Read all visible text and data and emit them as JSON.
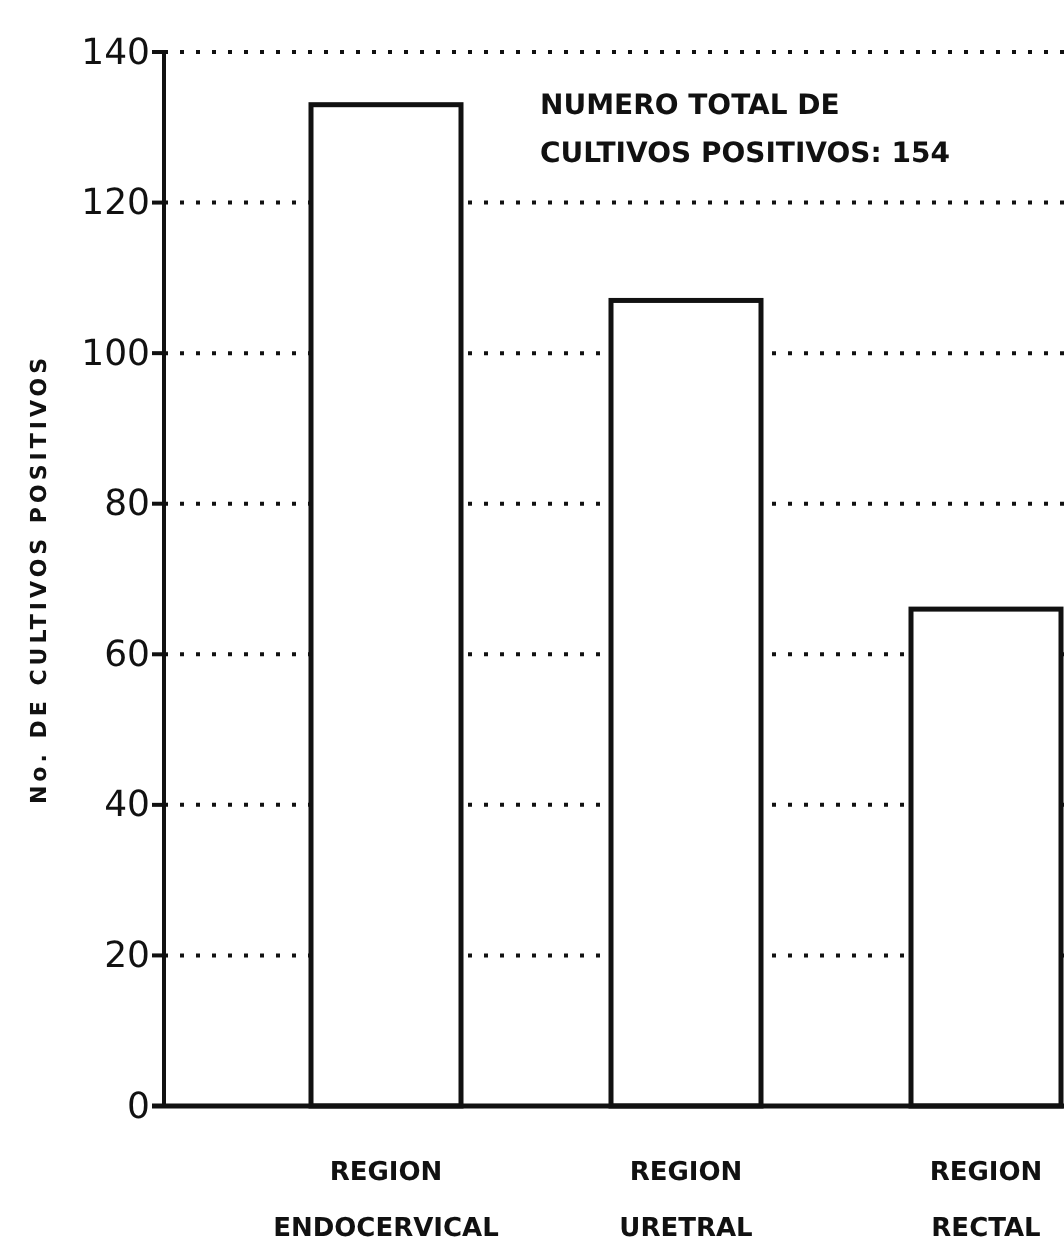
{
  "chart_data": {
    "type": "bar",
    "ylabel": "No. DE CULTIVOS POSITIVOS",
    "categories": [
      "REGION ENDOCERVICAL",
      "REGION URETRAL",
      "REGION RECTAL"
    ],
    "values": [
      133,
      107,
      66
    ],
    "color": "#ffffff",
    "ylim": [
      0,
      140
    ],
    "yticks": [
      0,
      20,
      40,
      60,
      80,
      100,
      120,
      140
    ],
    "grid": "y",
    "annotations": [
      "NUMERO TOTAL DE CULTIVOS POSITIVOS: 154"
    ]
  }
}
